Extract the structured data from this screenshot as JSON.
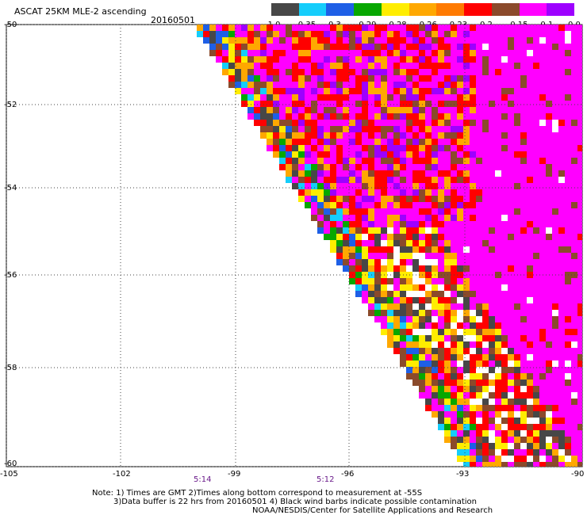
{
  "header": {
    "title": "ASCAT 25KM MLE-2 ascending",
    "date": "20160501"
  },
  "colorbar": {
    "labels": [
      "-1.0",
      "-0.35",
      "-0.3",
      "-0.29",
      "-0.28",
      "-0.26",
      "-0.23",
      "-0.2",
      "-0.15",
      "-0.1",
      "0.0"
    ],
    "colors": [
      "#474747",
      "#15cdfb",
      "#1e5fe6",
      "#07a700",
      "#ffed00",
      "#ffa800",
      "#ff7a00",
      "#ff0000",
      "#8b4a2b",
      "#ff00ff",
      "#9d00ff"
    ]
  },
  "map": {
    "lat_labels": [
      "-50",
      "-52",
      "-54",
      "-56",
      "-58",
      "-60"
    ],
    "lon_labels": [
      "-105",
      "-102",
      "-99",
      "-96",
      "-93",
      "-90"
    ],
    "time_labels": [
      "5:14",
      "5:12"
    ]
  },
  "footer": {
    "line1": "Note: 1) Times are GMT 2)Times along bottom correspond to measurement at -55S",
    "line2": "3)Data buffer is 22 hrs from 20160501 4) Black wind barbs indicate possible contamination",
    "line3": "NOAA/NESDIS/Center for Satellite Applications and Research"
  }
}
